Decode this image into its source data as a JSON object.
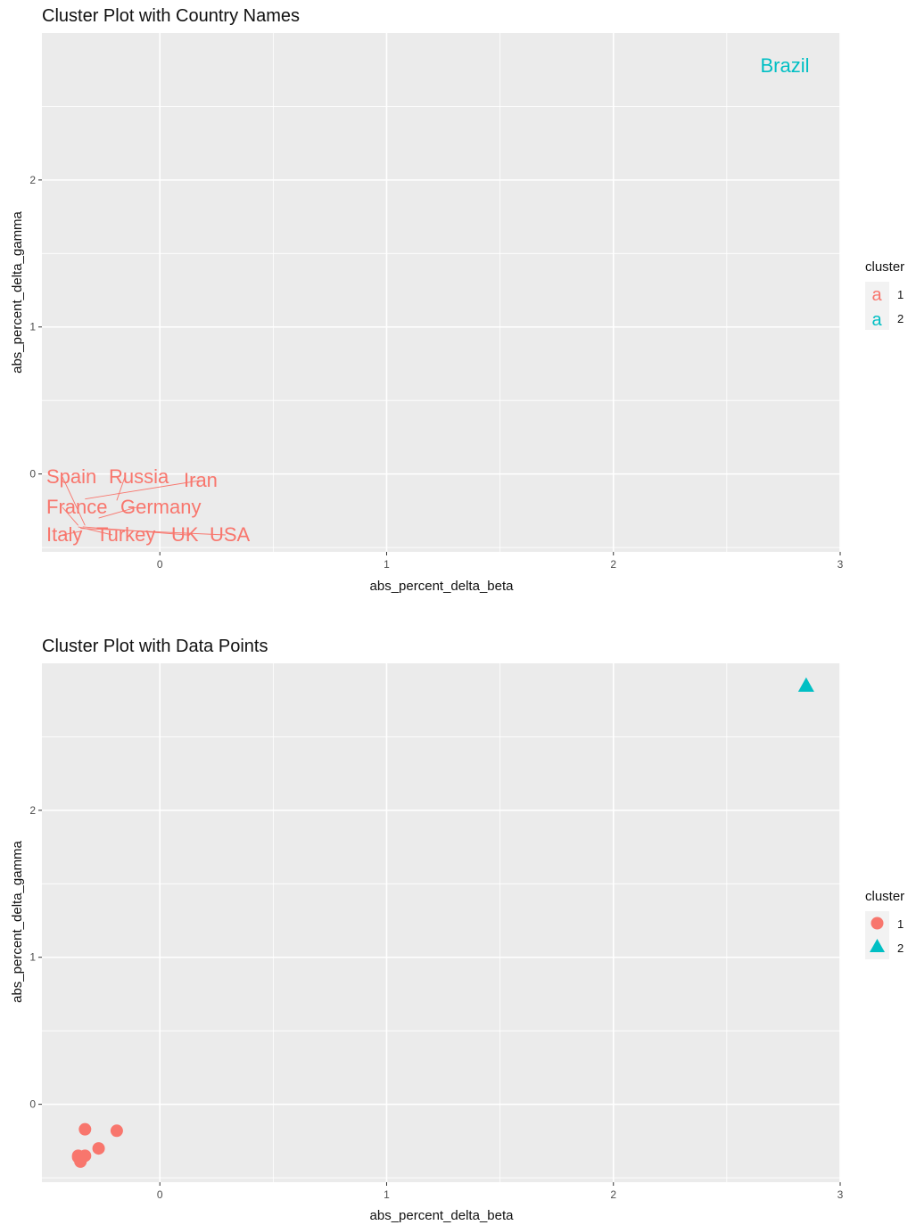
{
  "colors": {
    "cluster_1": "#F8766D",
    "cluster_2": "#00BFC4",
    "panel_background": "#EBEBEB",
    "grid": "#FFFFFF",
    "tick": "#333333"
  },
  "chart_data": [
    {
      "type": "scatter",
      "title": "Cluster Plot with Country Names",
      "xlabel": "abs_percent_delta_beta",
      "ylabel": "abs_percent_delta_gamma",
      "xlim": [
        -0.52,
        3.0
      ],
      "ylim": [
        -0.53,
        3.0
      ],
      "x_ticks": [
        0,
        1,
        2,
        3
      ],
      "y_ticks": [
        0,
        1,
        2
      ],
      "grid": true,
      "legend": {
        "title": "cluster",
        "position": "right",
        "key_glyph": "a",
        "entries": [
          {
            "label": "1",
            "color": "#F8766D"
          },
          {
            "label": "2",
            "color": "#00BFC4"
          }
        ]
      },
      "points": [
        {
          "name": "Spain",
          "x": -0.33,
          "y": -0.35,
          "cluster": "1"
        },
        {
          "name": "Russia",
          "x": -0.19,
          "y": -0.18,
          "cluster": "1"
        },
        {
          "name": "Iran",
          "x": -0.33,
          "y": -0.17,
          "cluster": "1"
        },
        {
          "name": "France",
          "x": -0.36,
          "y": -0.35,
          "cluster": "1"
        },
        {
          "name": "Germany",
          "x": -0.27,
          "y": -0.3,
          "cluster": "1"
        },
        {
          "name": "Italy",
          "x": -0.35,
          "y": -0.39,
          "cluster": "1"
        },
        {
          "name": "Turkey",
          "x": -0.36,
          "y": -0.36,
          "cluster": "1"
        },
        {
          "name": "UK",
          "x": -0.34,
          "y": -0.36,
          "cluster": "1"
        },
        {
          "name": "USA",
          "x": -0.35,
          "y": -0.37,
          "cluster": "1"
        },
        {
          "name": "Brazil",
          "x": 2.85,
          "y": 2.85,
          "cluster": "2"
        }
      ]
    },
    {
      "type": "scatter",
      "title": "Cluster Plot with Data Points",
      "xlabel": "abs_percent_delta_beta",
      "ylabel": "abs_percent_delta_gamma",
      "xlim": [
        -0.52,
        3.0
      ],
      "ylim": [
        -0.53,
        3.0
      ],
      "x_ticks": [
        0,
        1,
        2,
        3
      ],
      "y_ticks": [
        0,
        1,
        2
      ],
      "grid": true,
      "legend": {
        "title": "cluster",
        "position": "right",
        "entries": [
          {
            "label": "1",
            "shape": "circle",
            "color": "#F8766D"
          },
          {
            "label": "2",
            "shape": "triangle",
            "color": "#00BFC4"
          }
        ]
      },
      "points": [
        {
          "x": -0.33,
          "y": -0.17,
          "cluster": "1"
        },
        {
          "x": -0.19,
          "y": -0.18,
          "cluster": "1"
        },
        {
          "x": -0.27,
          "y": -0.3,
          "cluster": "1"
        },
        {
          "x": -0.33,
          "y": -0.35,
          "cluster": "1"
        },
        {
          "x": -0.36,
          "y": -0.35,
          "cluster": "1"
        },
        {
          "x": -0.34,
          "y": -0.36,
          "cluster": "1"
        },
        {
          "x": -0.36,
          "y": -0.36,
          "cluster": "1"
        },
        {
          "x": -0.35,
          "y": -0.37,
          "cluster": "1"
        },
        {
          "x": -0.35,
          "y": -0.39,
          "cluster": "1"
        },
        {
          "x": 2.85,
          "y": 2.85,
          "cluster": "2"
        }
      ]
    }
  ]
}
